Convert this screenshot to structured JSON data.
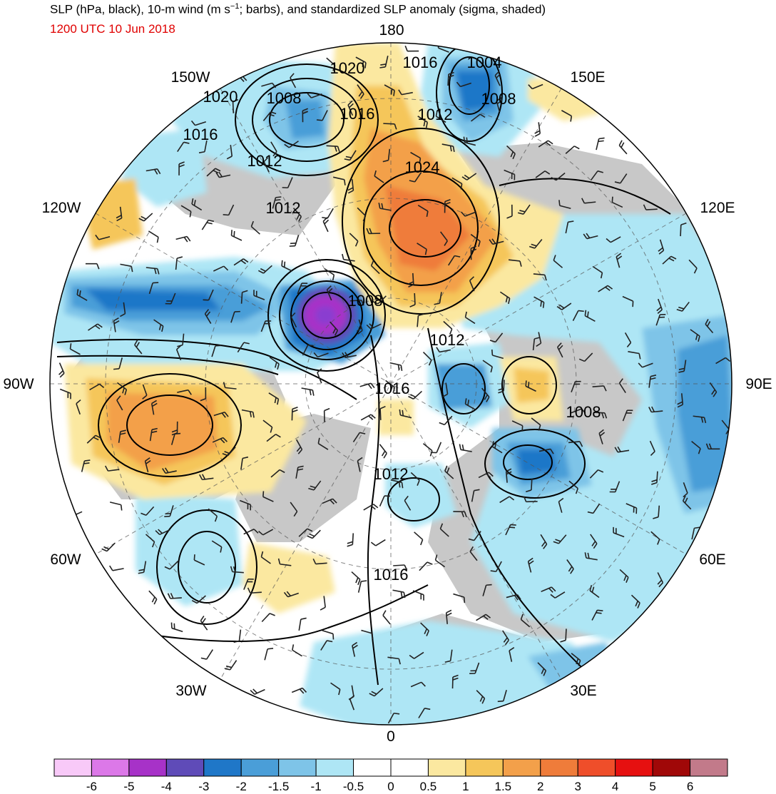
{
  "title": {
    "main_prefix": "SLP (hPa, black), 10-m wind (m s",
    "main_sup": "−1",
    "main_suffix": "; barbs), and standardized SLP anomaly (sigma, shaded)",
    "datetime": "1200 UTC 10 Jun 2018"
  },
  "longitude_labels": {
    "lon_180": "180",
    "lon_150w": "150W",
    "lon_150e": "150E",
    "lon_120w": "120W",
    "lon_120e": "120E",
    "lon_90w": "90W",
    "lon_90e": "90E",
    "lon_60w": "60W",
    "lon_60e": "60E",
    "lon_30w": "30W",
    "lon_30e": "30E",
    "lon_0": "0"
  },
  "isobar_labels": [
    "1020",
    "1016",
    "1004",
    "1020",
    "1008",
    "1016",
    "1012",
    "1008",
    "1016",
    "1012",
    "1024",
    "1012",
    "1008",
    "1012",
    "1016",
    "1008",
    "1012",
    "1016"
  ],
  "colorbar": {
    "colors": [
      "#f8c9f8",
      "#dc78e8",
      "#a732c8",
      "#5f4bb8",
      "#1f77c8",
      "#4a9ed8",
      "#7ec4e8",
      "#aee6f5",
      "#ffffff",
      "#ffffff",
      "#fbe8a0",
      "#f5c65a",
      "#f3a04a",
      "#ef7c3a",
      "#ef4e2a",
      "#e61010",
      "#a00808",
      "#c27a8a"
    ],
    "tick_labels": [
      "-6",
      "-5",
      "-4",
      "-3",
      "-2",
      "-1.5",
      "-1",
      "-0.5",
      "0",
      "0.5",
      "1",
      "1.5",
      "2",
      "3",
      "4",
      "5",
      "6"
    ]
  },
  "palette": {
    "land": "#c8c8c8",
    "ocean": "#ffffff",
    "strong_low": "#8a3ed0",
    "low_blue": "#2f80c8",
    "light_blue": "#aee6f5",
    "high_orange": "#ef7c3a",
    "high_yellow": "#fbe8a0"
  }
}
